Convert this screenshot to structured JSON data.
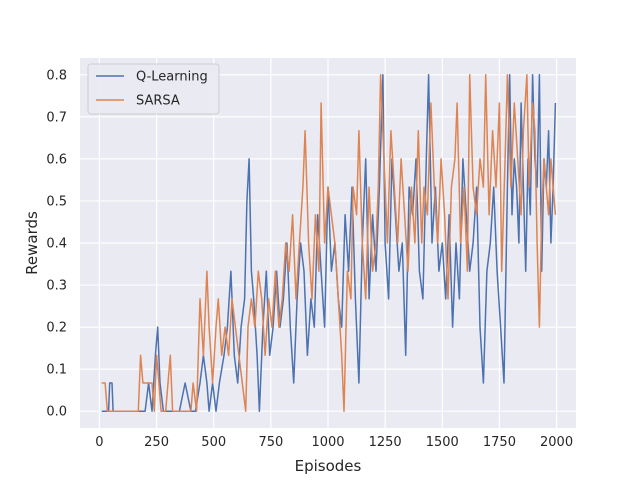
{
  "chart_data": {
    "type": "line",
    "title": "",
    "xlabel": "Episodes",
    "ylabel": "Rewards",
    "xlim": [
      -85,
      2085
    ],
    "ylim": [
      -0.04,
      0.84
    ],
    "x_ticks": [
      0,
      250,
      500,
      750,
      1000,
      1250,
      1500,
      1750,
      2000
    ],
    "y_ticks": [
      0.0,
      0.1,
      0.2,
      0.3,
      0.4,
      0.5,
      0.6,
      0.7,
      0.8
    ],
    "grid": true,
    "legend_position": "top-left",
    "colors": {
      "background": "#eaeaf2",
      "grid": "#ffffff"
    },
    "series": [
      {
        "name": "Q-Learning",
        "color": "#4c72b0",
        "points": [
          [
            10,
            0.0
          ],
          [
            40,
            0.0
          ],
          [
            45,
            0.067
          ],
          [
            55,
            0.067
          ],
          [
            60,
            0.0
          ],
          [
            180,
            0.0
          ],
          [
            200,
            0.0
          ],
          [
            215,
            0.067
          ],
          [
            230,
            0.0
          ],
          [
            245,
            0.133
          ],
          [
            255,
            0.2
          ],
          [
            265,
            0.067
          ],
          [
            280,
            0.0
          ],
          [
            320,
            0.0
          ],
          [
            350,
            0.0
          ],
          [
            375,
            0.067
          ],
          [
            400,
            0.0
          ],
          [
            420,
            0.0
          ],
          [
            440,
            0.067
          ],
          [
            455,
            0.133
          ],
          [
            470,
            0.067
          ],
          [
            480,
            0.0
          ],
          [
            495,
            0.067
          ],
          [
            510,
            0.0
          ],
          [
            525,
            0.067
          ],
          [
            545,
            0.133
          ],
          [
            560,
            0.2
          ],
          [
            575,
            0.333
          ],
          [
            590,
            0.133
          ],
          [
            605,
            0.067
          ],
          [
            620,
            0.2
          ],
          [
            635,
            0.267
          ],
          [
            645,
            0.5
          ],
          [
            655,
            0.6
          ],
          [
            665,
            0.333
          ],
          [
            675,
            0.267
          ],
          [
            690,
            0.133
          ],
          [
            700,
            0.0
          ],
          [
            715,
            0.2
          ],
          [
            730,
            0.333
          ],
          [
            745,
            0.133
          ],
          [
            760,
            0.2
          ],
          [
            775,
            0.333
          ],
          [
            790,
            0.2
          ],
          [
            805,
            0.267
          ],
          [
            820,
            0.4
          ],
          [
            835,
            0.2
          ],
          [
            850,
            0.067
          ],
          [
            865,
            0.267
          ],
          [
            880,
            0.4
          ],
          [
            895,
            0.333
          ],
          [
            910,
            0.133
          ],
          [
            925,
            0.267
          ],
          [
            940,
            0.2
          ],
          [
            955,
            0.467
          ],
          [
            970,
            0.333
          ],
          [
            985,
            0.2
          ],
          [
            1000,
            0.533
          ],
          [
            1015,
            0.333
          ],
          [
            1030,
            0.4
          ],
          [
            1045,
            0.267
          ],
          [
            1060,
            0.2
          ],
          [
            1075,
            0.467
          ],
          [
            1090,
            0.333
          ],
          [
            1105,
            0.533
          ],
          [
            1120,
            0.267
          ],
          [
            1135,
            0.067
          ],
          [
            1150,
            0.4
          ],
          [
            1165,
            0.6
          ],
          [
            1180,
            0.267
          ],
          [
            1195,
            0.467
          ],
          [
            1210,
            0.333
          ],
          [
            1225,
            0.533
          ],
          [
            1240,
            0.8
          ],
          [
            1250,
            0.4
          ],
          [
            1265,
            0.267
          ],
          [
            1280,
            0.6
          ],
          [
            1295,
            0.467
          ],
          [
            1310,
            0.333
          ],
          [
            1325,
            0.4
          ],
          [
            1340,
            0.133
          ],
          [
            1355,
            0.533
          ],
          [
            1370,
            0.467
          ],
          [
            1385,
            0.6
          ],
          [
            1400,
            0.333
          ],
          [
            1415,
            0.267
          ],
          [
            1430,
            0.6
          ],
          [
            1440,
            0.8
          ],
          [
            1455,
            0.4
          ],
          [
            1470,
            0.533
          ],
          [
            1485,
            0.333
          ],
          [
            1500,
            0.4
          ],
          [
            1515,
            0.267
          ],
          [
            1530,
            0.467
          ],
          [
            1545,
            0.2
          ],
          [
            1560,
            0.4
          ],
          [
            1575,
            0.267
          ],
          [
            1590,
            0.6
          ],
          [
            1605,
            0.467
          ],
          [
            1620,
            0.333
          ],
          [
            1635,
            0.4
          ],
          [
            1650,
            0.533
          ],
          [
            1665,
            0.2
          ],
          [
            1680,
            0.067
          ],
          [
            1695,
            0.333
          ],
          [
            1710,
            0.4
          ],
          [
            1725,
            0.533
          ],
          [
            1740,
            0.333
          ],
          [
            1755,
            0.2
          ],
          [
            1770,
            0.067
          ],
          [
            1785,
            0.533
          ],
          [
            1795,
            0.8
          ],
          [
            1805,
            0.467
          ],
          [
            1815,
            0.6
          ],
          [
            1825,
            0.533
          ],
          [
            1835,
            0.4
          ],
          [
            1845,
            0.733
          ],
          [
            1855,
            0.533
          ],
          [
            1865,
            0.333
          ],
          [
            1875,
            0.6
          ],
          [
            1885,
            0.467
          ],
          [
            1895,
            0.8
          ],
          [
            1905,
            0.6
          ],
          [
            1915,
            0.533
          ],
          [
            1925,
            0.8
          ],
          [
            1935,
            0.333
          ],
          [
            1945,
            0.6
          ],
          [
            1955,
            0.533
          ],
          [
            1965,
            0.667
          ],
          [
            1975,
            0.4
          ],
          [
            1985,
            0.533
          ],
          [
            1995,
            0.733
          ]
        ]
      },
      {
        "name": "SARSA",
        "color": "#dd8452",
        "points": [
          [
            10,
            0.067
          ],
          [
            25,
            0.067
          ],
          [
            35,
            0.0
          ],
          [
            170,
            0.0
          ],
          [
            180,
            0.133
          ],
          [
            190,
            0.067
          ],
          [
            230,
            0.067
          ],
          [
            240,
            0.0
          ],
          [
            250,
            0.133
          ],
          [
            260,
            0.067
          ],
          [
            270,
            0.0
          ],
          [
            290,
            0.0
          ],
          [
            300,
            0.067
          ],
          [
            310,
            0.133
          ],
          [
            320,
            0.0
          ],
          [
            400,
            0.0
          ],
          [
            410,
            0.067
          ],
          [
            425,
            0.0
          ],
          [
            440,
            0.267
          ],
          [
            455,
            0.133
          ],
          [
            470,
            0.333
          ],
          [
            480,
            0.2
          ],
          [
            495,
            0.067
          ],
          [
            510,
            0.2
          ],
          [
            520,
            0.267
          ],
          [
            535,
            0.133
          ],
          [
            550,
            0.2
          ],
          [
            565,
            0.133
          ],
          [
            580,
            0.267
          ],
          [
            595,
            0.2
          ],
          [
            610,
            0.133
          ],
          [
            625,
            0.067
          ],
          [
            640,
            0.0
          ],
          [
            650,
            0.2
          ],
          [
            665,
            0.267
          ],
          [
            680,
            0.2
          ],
          [
            695,
            0.333
          ],
          [
            710,
            0.267
          ],
          [
            725,
            0.133
          ],
          [
            740,
            0.267
          ],
          [
            755,
            0.2
          ],
          [
            770,
            0.333
          ],
          [
            785,
            0.2
          ],
          [
            800,
            0.267
          ],
          [
            815,
            0.4
          ],
          [
            830,
            0.333
          ],
          [
            845,
            0.467
          ],
          [
            860,
            0.267
          ],
          [
            875,
            0.4
          ],
          [
            890,
            0.533
          ],
          [
            900,
            0.667
          ],
          [
            915,
            0.4
          ],
          [
            930,
            0.267
          ],
          [
            945,
            0.467
          ],
          [
            960,
            0.333
          ],
          [
            970,
            0.733
          ],
          [
            985,
            0.4
          ],
          [
            1000,
            0.533
          ],
          [
            1015,
            0.467
          ],
          [
            1030,
            0.4
          ],
          [
            1045,
            0.267
          ],
          [
            1060,
            0.133
          ],
          [
            1070,
            0.0
          ],
          [
            1085,
            0.333
          ],
          [
            1100,
            0.267
          ],
          [
            1110,
            0.533
          ],
          [
            1125,
            0.467
          ],
          [
            1135,
            0.667
          ],
          [
            1150,
            0.4
          ],
          [
            1165,
            0.267
          ],
          [
            1180,
            0.533
          ],
          [
            1195,
            0.333
          ],
          [
            1210,
            0.4
          ],
          [
            1220,
            0.533
          ],
          [
            1230,
            0.8
          ],
          [
            1245,
            0.6
          ],
          [
            1260,
            0.4
          ],
          [
            1275,
            0.667
          ],
          [
            1290,
            0.533
          ],
          [
            1305,
            0.4
          ],
          [
            1320,
            0.6
          ],
          [
            1335,
            0.467
          ],
          [
            1350,
            0.333
          ],
          [
            1365,
            0.533
          ],
          [
            1380,
            0.4
          ],
          [
            1395,
            0.667
          ],
          [
            1410,
            0.4
          ],
          [
            1420,
            0.533
          ],
          [
            1435,
            0.467
          ],
          [
            1450,
            0.733
          ],
          [
            1465,
            0.533
          ],
          [
            1480,
            0.4
          ],
          [
            1495,
            0.6
          ],
          [
            1510,
            0.467
          ],
          [
            1525,
            0.267
          ],
          [
            1540,
            0.533
          ],
          [
            1555,
            0.6
          ],
          [
            1565,
            0.733
          ],
          [
            1580,
            0.4
          ],
          [
            1595,
            0.533
          ],
          [
            1610,
            0.333
          ],
          [
            1620,
            0.8
          ],
          [
            1635,
            0.533
          ],
          [
            1650,
            0.467
          ],
          [
            1665,
            0.6
          ],
          [
            1680,
            0.533
          ],
          [
            1690,
            0.8
          ],
          [
            1705,
            0.467
          ],
          [
            1720,
            0.667
          ],
          [
            1735,
            0.533
          ],
          [
            1750,
            0.733
          ],
          [
            1760,
            0.333
          ],
          [
            1775,
            0.6
          ],
          [
            1785,
            0.8
          ],
          [
            1800,
            0.533
          ],
          [
            1815,
            0.733
          ],
          [
            1830,
            0.6
          ],
          [
            1845,
            0.467
          ],
          [
            1855,
            0.667
          ],
          [
            1870,
            0.8
          ],
          [
            1880,
            0.533
          ],
          [
            1895,
            0.733
          ],
          [
            1905,
            0.667
          ],
          [
            1915,
            0.4
          ],
          [
            1925,
            0.2
          ],
          [
            1935,
            0.467
          ],
          [
            1945,
            0.6
          ],
          [
            1955,
            0.533
          ],
          [
            1965,
            0.467
          ],
          [
            1975,
            0.6
          ],
          [
            1985,
            0.533
          ],
          [
            1995,
            0.467
          ]
        ]
      }
    ]
  }
}
